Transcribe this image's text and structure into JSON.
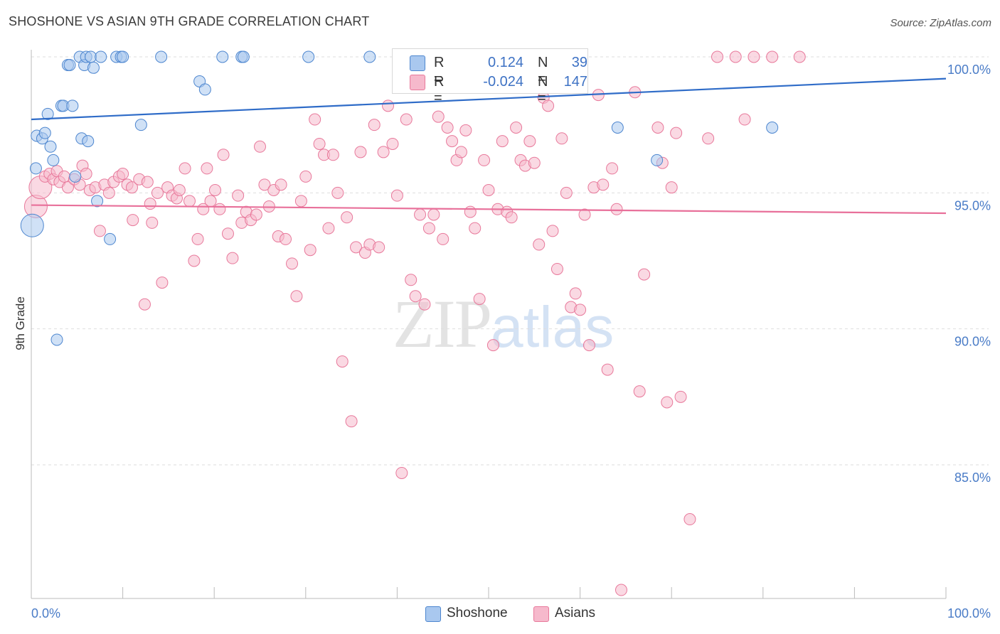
{
  "header": {
    "title": "SHOSHONE VS ASIAN 9TH GRADE CORRELATION CHART",
    "source": "Source: ZipAtlas.com"
  },
  "watermark": {
    "zip": "ZIP",
    "atlas": "atlas"
  },
  "legend": {
    "rows": [
      {
        "r_label": "R =",
        "r_value": "0.124",
        "n_label": "N =",
        "n_value": "39"
      },
      {
        "r_label": "R =",
        "r_value": "-0.024",
        "n_label": "N =",
        "n_value": "147"
      }
    ]
  },
  "bottom_legend": [
    {
      "label": "Shoshone"
    },
    {
      "label": "Asians"
    }
  ],
  "colors": {
    "shoshone_fill": "#a9c8ef",
    "shoshone_stroke": "#4d86cf",
    "shoshone_line": "#2f6cc8",
    "asians_fill": "#f6b9cc",
    "asians_stroke": "#e8799b",
    "asians_line": "#e8709a",
    "tick_text": "#4a7cc7",
    "grid": "#dedede"
  },
  "chart_data": {
    "type": "scatter",
    "title": "SHOSHONE VS ASIAN 9TH GRADE CORRELATION CHART",
    "xlabel": "",
    "ylabel": "9th Grade",
    "xlim": [
      0,
      100
    ],
    "ylim": [
      80.0,
      101.0
    ],
    "x_tick_labels": [
      "0.0%",
      "100.0%"
    ],
    "y_ticks": [
      {
        "value": 100,
        "label": "100.0%"
      },
      {
        "value": 95,
        "label": "95.0%"
      },
      {
        "value": 90,
        "label": "90.0%"
      },
      {
        "value": 85,
        "label": "85.0%"
      }
    ],
    "grid": true,
    "legend_position": "top-center",
    "series": [
      {
        "name": "Shoshone",
        "trend": {
          "x": [
            0,
            100
          ],
          "y": [
            97.7,
            99.2
          ]
        },
        "points": [
          {
            "x": 0.1,
            "y": 93.8,
            "big": true
          },
          {
            "x": 0.5,
            "y": 95.9
          },
          {
            "x": 0.6,
            "y": 97.1
          },
          {
            "x": 1.2,
            "y": 97.0
          },
          {
            "x": 1.5,
            "y": 97.2
          },
          {
            "x": 1.8,
            "y": 97.9
          },
          {
            "x": 2.1,
            "y": 96.7
          },
          {
            "x": 2.4,
            "y": 96.2
          },
          {
            "x": 2.8,
            "y": 89.6
          },
          {
            "x": 3.3,
            "y": 98.2
          },
          {
            "x": 3.5,
            "y": 98.2
          },
          {
            "x": 4.0,
            "y": 99.7
          },
          {
            "x": 4.2,
            "y": 99.7
          },
          {
            "x": 4.5,
            "y": 98.2
          },
          {
            "x": 4.8,
            "y": 95.6
          },
          {
            "x": 5.3,
            "y": 100.0
          },
          {
            "x": 5.5,
            "y": 97.0
          },
          {
            "x": 5.8,
            "y": 99.7
          },
          {
            "x": 6.0,
            "y": 100.0
          },
          {
            "x": 6.2,
            "y": 96.9
          },
          {
            "x": 6.5,
            "y": 100.0
          },
          {
            "x": 6.8,
            "y": 99.6
          },
          {
            "x": 7.2,
            "y": 94.7
          },
          {
            "x": 7.6,
            "y": 100.0
          },
          {
            "x": 8.6,
            "y": 93.3
          },
          {
            "x": 9.3,
            "y": 100.0
          },
          {
            "x": 9.8,
            "y": 100.0
          },
          {
            "x": 10.0,
            "y": 100.0
          },
          {
            "x": 12.0,
            "y": 97.5
          },
          {
            "x": 14.2,
            "y": 100.0
          },
          {
            "x": 18.4,
            "y": 99.1
          },
          {
            "x": 19.0,
            "y": 98.8
          },
          {
            "x": 20.9,
            "y": 100.0
          },
          {
            "x": 23.0,
            "y": 100.0
          },
          {
            "x": 23.2,
            "y": 100.0
          },
          {
            "x": 30.3,
            "y": 100.0
          },
          {
            "x": 37.0,
            "y": 100.0
          },
          {
            "x": 64.1,
            "y": 97.4
          },
          {
            "x": 81.0,
            "y": 97.4
          },
          {
            "x": 68.4,
            "y": 96.2
          }
        ]
      },
      {
        "name": "Asians",
        "trend": {
          "x": [
            0,
            100
          ],
          "y": [
            94.55,
            94.25
          ]
        },
        "points": [
          {
            "x": 0.5,
            "y": 94.5,
            "big": true
          },
          {
            "x": 1.0,
            "y": 95.2,
            "big": true
          },
          {
            "x": 1.5,
            "y": 95.6
          },
          {
            "x": 2.0,
            "y": 95.7
          },
          {
            "x": 2.4,
            "y": 95.5
          },
          {
            "x": 2.8,
            "y": 95.8
          },
          {
            "x": 3.1,
            "y": 95.4
          },
          {
            "x": 3.6,
            "y": 95.6
          },
          {
            "x": 4.0,
            "y": 95.2
          },
          {
            "x": 4.7,
            "y": 95.5
          },
          {
            "x": 5.3,
            "y": 95.3
          },
          {
            "x": 5.6,
            "y": 96.0
          },
          {
            "x": 6.0,
            "y": 95.7
          },
          {
            "x": 6.4,
            "y": 95.1
          },
          {
            "x": 7.0,
            "y": 95.2
          },
          {
            "x": 7.5,
            "y": 93.6
          },
          {
            "x": 8.0,
            "y": 95.3
          },
          {
            "x": 8.5,
            "y": 95.0
          },
          {
            "x": 9.0,
            "y": 95.4
          },
          {
            "x": 9.6,
            "y": 95.6
          },
          {
            "x": 10.0,
            "y": 95.7
          },
          {
            "x": 10.5,
            "y": 95.3
          },
          {
            "x": 11.0,
            "y": 95.2
          },
          {
            "x": 11.1,
            "y": 94.0
          },
          {
            "x": 11.8,
            "y": 95.5
          },
          {
            "x": 12.4,
            "y": 90.9
          },
          {
            "x": 12.7,
            "y": 95.4
          },
          {
            "x": 13.0,
            "y": 94.6
          },
          {
            "x": 13.2,
            "y": 93.9
          },
          {
            "x": 13.8,
            "y": 95.0
          },
          {
            "x": 14.3,
            "y": 91.7
          },
          {
            "x": 14.9,
            "y": 95.2
          },
          {
            "x": 15.4,
            "y": 94.9
          },
          {
            "x": 15.9,
            "y": 94.8
          },
          {
            "x": 16.2,
            "y": 95.1
          },
          {
            "x": 16.8,
            "y": 95.9
          },
          {
            "x": 17.3,
            "y": 94.7
          },
          {
            "x": 17.8,
            "y": 92.5
          },
          {
            "x": 18.2,
            "y": 93.3
          },
          {
            "x": 18.8,
            "y": 94.4
          },
          {
            "x": 19.2,
            "y": 95.9
          },
          {
            "x": 19.6,
            "y": 94.7
          },
          {
            "x": 20.1,
            "y": 95.1
          },
          {
            "x": 20.6,
            "y": 94.4
          },
          {
            "x": 21.0,
            "y": 96.4
          },
          {
            "x": 21.5,
            "y": 93.5
          },
          {
            "x": 22.0,
            "y": 92.6
          },
          {
            "x": 22.6,
            "y": 94.9
          },
          {
            "x": 23.0,
            "y": 93.9
          },
          {
            "x": 23.5,
            "y": 94.3
          },
          {
            "x": 24.0,
            "y": 94.0
          },
          {
            "x": 24.6,
            "y": 94.2
          },
          {
            "x": 25.0,
            "y": 96.7
          },
          {
            "x": 25.5,
            "y": 95.3
          },
          {
            "x": 26.0,
            "y": 94.5
          },
          {
            "x": 26.5,
            "y": 95.1
          },
          {
            "x": 27.0,
            "y": 93.4
          },
          {
            "x": 27.3,
            "y": 95.3
          },
          {
            "x": 27.8,
            "y": 93.3
          },
          {
            "x": 28.5,
            "y": 92.4
          },
          {
            "x": 29.0,
            "y": 91.2
          },
          {
            "x": 29.5,
            "y": 94.7
          },
          {
            "x": 30.0,
            "y": 95.6
          },
          {
            "x": 30.5,
            "y": 92.9
          },
          {
            "x": 31.0,
            "y": 97.7
          },
          {
            "x": 31.5,
            "y": 96.8
          },
          {
            "x": 32.0,
            "y": 96.4
          },
          {
            "x": 32.5,
            "y": 93.7
          },
          {
            "x": 33.0,
            "y": 96.4
          },
          {
            "x": 33.5,
            "y": 95.0
          },
          {
            "x": 34.0,
            "y": 88.8
          },
          {
            "x": 34.5,
            "y": 94.1
          },
          {
            "x": 35.0,
            "y": 86.6
          },
          {
            "x": 35.5,
            "y": 93.0
          },
          {
            "x": 36.0,
            "y": 96.5
          },
          {
            "x": 36.5,
            "y": 92.8
          },
          {
            "x": 37.0,
            "y": 93.1
          },
          {
            "x": 37.5,
            "y": 97.5
          },
          {
            "x": 38.0,
            "y": 93.0
          },
          {
            "x": 38.5,
            "y": 96.5
          },
          {
            "x": 39.0,
            "y": 98.2
          },
          {
            "x": 39.5,
            "y": 96.8
          },
          {
            "x": 40.0,
            "y": 94.9
          },
          {
            "x": 40.5,
            "y": 84.7
          },
          {
            "x": 41.0,
            "y": 97.7
          },
          {
            "x": 41.5,
            "y": 91.8
          },
          {
            "x": 42.0,
            "y": 91.2
          },
          {
            "x": 42.5,
            "y": 94.2
          },
          {
            "x": 43.0,
            "y": 90.9
          },
          {
            "x": 43.5,
            "y": 93.7
          },
          {
            "x": 44.0,
            "y": 94.2
          },
          {
            "x": 44.5,
            "y": 97.8
          },
          {
            "x": 45.0,
            "y": 93.3
          },
          {
            "x": 45.5,
            "y": 97.4
          },
          {
            "x": 46.0,
            "y": 96.9
          },
          {
            "x": 46.5,
            "y": 96.2
          },
          {
            "x": 47.0,
            "y": 96.5
          },
          {
            "x": 47.5,
            "y": 97.3
          },
          {
            "x": 48.0,
            "y": 94.3
          },
          {
            "x": 48.5,
            "y": 93.7
          },
          {
            "x": 49.0,
            "y": 91.1
          },
          {
            "x": 49.5,
            "y": 96.2
          },
          {
            "x": 50.0,
            "y": 95.1
          },
          {
            "x": 50.5,
            "y": 89.4
          },
          {
            "x": 51.0,
            "y": 94.4
          },
          {
            "x": 51.5,
            "y": 96.9
          },
          {
            "x": 52.0,
            "y": 94.3
          },
          {
            "x": 52.5,
            "y": 94.1
          },
          {
            "x": 53.0,
            "y": 97.4
          },
          {
            "x": 53.5,
            "y": 96.2
          },
          {
            "x": 54.0,
            "y": 96.0
          },
          {
            "x": 54.5,
            "y": 96.9
          },
          {
            "x": 55.0,
            "y": 96.1
          },
          {
            "x": 55.5,
            "y": 93.1
          },
          {
            "x": 56.0,
            "y": 98.5
          },
          {
            "x": 56.5,
            "y": 98.2
          },
          {
            "x": 57.0,
            "y": 93.6
          },
          {
            "x": 57.5,
            "y": 92.2
          },
          {
            "x": 58.0,
            "y": 97.0
          },
          {
            "x": 58.5,
            "y": 95.0
          },
          {
            "x": 59.0,
            "y": 90.8
          },
          {
            "x": 59.5,
            "y": 91.3
          },
          {
            "x": 60.0,
            "y": 90.7
          },
          {
            "x": 60.5,
            "y": 94.2
          },
          {
            "x": 61.0,
            "y": 89.4
          },
          {
            "x": 61.5,
            "y": 95.2
          },
          {
            "x": 62.0,
            "y": 98.6
          },
          {
            "x": 62.5,
            "y": 95.3
          },
          {
            "x": 63.0,
            "y": 88.5
          },
          {
            "x": 63.5,
            "y": 95.9
          },
          {
            "x": 64.0,
            "y": 94.4
          },
          {
            "x": 64.5,
            "y": 80.4
          },
          {
            "x": 66.0,
            "y": 98.7
          },
          {
            "x": 66.5,
            "y": 87.7
          },
          {
            "x": 67.0,
            "y": 92.0
          },
          {
            "x": 68.5,
            "y": 97.4
          },
          {
            "x": 69.0,
            "y": 96.1
          },
          {
            "x": 69.5,
            "y": 87.3
          },
          {
            "x": 70.0,
            "y": 95.2
          },
          {
            "x": 70.5,
            "y": 97.2
          },
          {
            "x": 71.0,
            "y": 87.5
          },
          {
            "x": 72.0,
            "y": 83.0
          },
          {
            "x": 74.0,
            "y": 97.0
          },
          {
            "x": 75.0,
            "y": 100.0
          },
          {
            "x": 77.0,
            "y": 100.0
          },
          {
            "x": 78.0,
            "y": 97.7
          },
          {
            "x": 79.0,
            "y": 100.0
          },
          {
            "x": 81.0,
            "y": 100.0
          },
          {
            "x": 84.0,
            "y": 100.0
          }
        ]
      }
    ]
  }
}
